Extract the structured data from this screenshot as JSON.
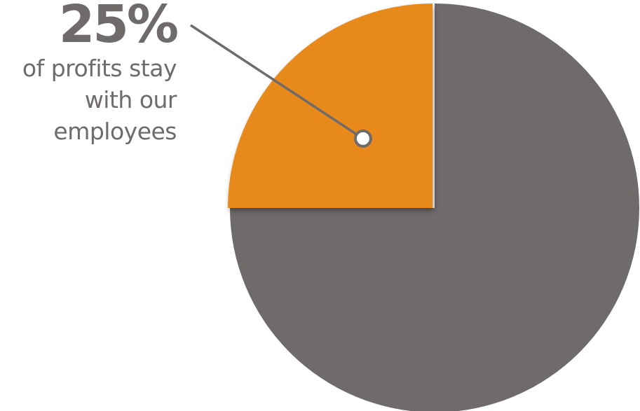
{
  "chart_data": {
    "type": "pie",
    "slices": [
      {
        "label": "25%",
        "value": 25,
        "color": "#e8891f"
      },
      {
        "label": "",
        "value": 75,
        "color": "#6e6b6a"
      }
    ],
    "annotation": {
      "value_text": "25%",
      "lines": [
        "of profits stay",
        "with our",
        "employees"
      ]
    },
    "legend": "none",
    "grid": false
  }
}
